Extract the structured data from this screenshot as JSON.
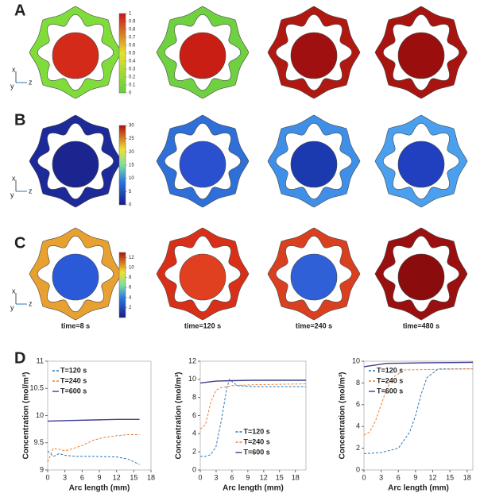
{
  "panels": [
    {
      "label": "A",
      "triad": [
        "x",
        "y",
        "z"
      ],
      "colorbar": {
        "lim": [
          0,
          1
        ],
        "ticks": [
          0,
          0.1,
          0.2,
          0.3,
          0.4,
          0.5,
          0.6,
          0.7,
          0.8,
          0.9,
          1
        ]
      }
    },
    {
      "label": "B",
      "triad": [
        "x",
        "y",
        "z"
      ],
      "colorbar": {
        "lim": [
          0,
          30
        ],
        "ticks": [
          0,
          5,
          10,
          15,
          20,
          25,
          30
        ]
      }
    },
    {
      "label": "C",
      "triad": [
        "x",
        "y",
        "z"
      ],
      "colorbar": {
        "lim": [
          0,
          13
        ],
        "ticks": [
          2,
          4,
          6,
          8,
          10,
          12
        ]
      },
      "times": [
        "time=8 s",
        "time=120 s",
        "time=240 s",
        "time=480 s"
      ]
    }
  ],
  "panel_d_label": "D",
  "chart_data": [
    {
      "type": "line",
      "xlabel": "Arc length (mm)",
      "ylabel": "Concentration (mol/m³)",
      "xlim": [
        0,
        18
      ],
      "ylim": [
        9,
        11
      ],
      "xticks": [
        0,
        3,
        6,
        9,
        12,
        15,
        18
      ],
      "yticks": [
        9,
        9.5,
        10,
        10.5,
        11
      ],
      "legend": "upper left",
      "series": [
        {
          "name": "T=120 s",
          "color": "#2e75b6",
          "dash": true,
          "x": [
            0,
            1,
            2,
            3,
            5,
            8,
            12,
            14,
            16
          ],
          "values": [
            9.35,
            9.25,
            9.3,
            9.27,
            9.25,
            9.25,
            9.24,
            9.2,
            9.1
          ]
        },
        {
          "name": "T=240 s",
          "color": "#ed7d31",
          "dash": true,
          "x": [
            0,
            1,
            2,
            3,
            4,
            6,
            8,
            10,
            12,
            14,
            16
          ],
          "values": [
            9.15,
            9.4,
            9.38,
            9.35,
            9.38,
            9.45,
            9.55,
            9.6,
            9.63,
            9.65,
            9.65
          ]
        },
        {
          "name": "T=600 s",
          "color": "#3f3f8f",
          "dash": false,
          "x": [
            0,
            4,
            8,
            12,
            16
          ],
          "values": [
            9.9,
            9.91,
            9.92,
            9.93,
            9.93
          ]
        }
      ]
    },
    {
      "type": "line",
      "xlabel": "Arc length (mm)",
      "ylabel": "Concentration (mol/m³)",
      "xlim": [
        0,
        20
      ],
      "ylim": [
        0,
        12
      ],
      "xticks": [
        0,
        3,
        6,
        9,
        12,
        15,
        18
      ],
      "yticks": [
        0,
        2,
        4,
        6,
        8,
        10,
        12
      ],
      "legend": "lower center",
      "series": [
        {
          "name": "T=120 s",
          "color": "#2e75b6",
          "dash": true,
          "x": [
            0,
            1,
            2,
            3,
            4,
            5,
            5.5,
            7,
            10,
            20
          ],
          "values": [
            1.5,
            1.5,
            1.7,
            2.6,
            5.5,
            9,
            10,
            9.3,
            9.2,
            9.2
          ]
        },
        {
          "name": "T=240 s",
          "color": "#ed7d31",
          "dash": true,
          "x": [
            0,
            1,
            2,
            3,
            4,
            6,
            10,
            20
          ],
          "values": [
            4.5,
            5,
            7.5,
            8.8,
            9.1,
            9.3,
            9.4,
            9.5
          ]
        },
        {
          "name": "T=600 s",
          "color": "#3f3f8f",
          "dash": false,
          "x": [
            0,
            3,
            6,
            10,
            20
          ],
          "values": [
            9.6,
            9.8,
            9.85,
            9.9,
            9.9
          ]
        }
      ]
    },
    {
      "type": "line",
      "xlabel": "Arc length (mm)",
      "ylabel": "Concentration (mol/m³)",
      "xlim": [
        0,
        19
      ],
      "ylim": [
        0,
        10
      ],
      "xticks": [
        0,
        3,
        6,
        9,
        12,
        15,
        18
      ],
      "yticks": [
        0,
        2,
        4,
        6,
        8,
        10
      ],
      "legend": "upper left",
      "series": [
        {
          "name": "T=120 s",
          "color": "#2e75b6",
          "dash": true,
          "x": [
            0,
            3,
            6,
            8,
            9,
            10,
            11,
            13,
            19
          ],
          "values": [
            1.5,
            1.6,
            2,
            3.5,
            5,
            7,
            8.5,
            9.3,
            9.3
          ]
        },
        {
          "name": "T=240 s",
          "color": "#ed7d31",
          "dash": true,
          "x": [
            0,
            1,
            2,
            3,
            4,
            5,
            7,
            19
          ],
          "values": [
            3.2,
            3.5,
            4.5,
            6,
            7.5,
            8.5,
            9.2,
            9.3
          ]
        },
        {
          "name": "T=600 s",
          "color": "#3f3f8f",
          "dash": false,
          "x": [
            0,
            4,
            10,
            19
          ],
          "values": [
            9.5,
            9.8,
            9.85,
            9.9
          ]
        }
      ]
    }
  ]
}
